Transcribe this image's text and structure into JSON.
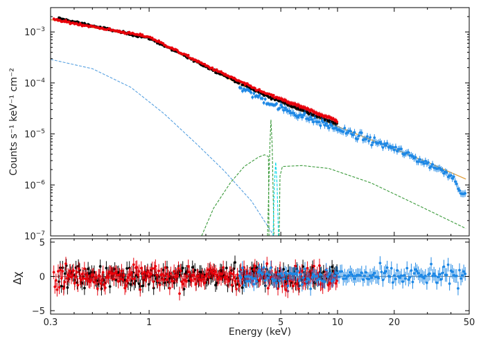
{
  "chart_data": [
    {
      "type": "scatter",
      "panel": "spectrum",
      "xlabel": "",
      "ylabel": "Counts s⁻¹ keV⁻¹ cm⁻²",
      "xscale": "log",
      "yscale": "log",
      "xlim": [
        0.3,
        50
      ],
      "ylim": [
        1e-07,
        0.003
      ],
      "y_ticks": [
        {
          "v": 0.001,
          "m": "10",
          "e": "−3"
        },
        {
          "v": 0.0001,
          "m": "10",
          "e": "−4"
        },
        {
          "v": 1e-05,
          "m": "10",
          "e": "−5"
        },
        {
          "v": 1e-06,
          "m": "10",
          "e": "−6"
        },
        {
          "v": 1e-07,
          "m": "10",
          "e": "−7"
        }
      ],
      "series": [
        {
          "color": "#000000",
          "x_range": [
            0.33,
            10
          ],
          "points": 230,
          "anchors": [
            [
              0.33,
              0.00185
            ],
            [
              1.0,
              0.00075
            ],
            [
              2.0,
              0.00021
            ],
            [
              4.0,
              6e-05
            ],
            [
              10.0,
              1.55e-05
            ]
          ]
        },
        {
          "color": "#e8000b",
          "x_range": [
            0.31,
            10
          ],
          "points": 260,
          "anchors": [
            [
              0.31,
              0.00175
            ],
            [
              1.0,
              0.0008
            ],
            [
              2.0,
              0.00022
            ],
            [
              4.0,
              6.6e-05
            ],
            [
              10.0,
              1.8e-05
            ]
          ]
        },
        {
          "color": "#1e88e5",
          "x_range": [
            3,
            48
          ],
          "points": 160,
          "anchors": [
            [
              3.0,
              8.2e-05
            ],
            [
              5.0,
              3.2e-05
            ],
            [
              10.0,
              1.25e-05
            ],
            [
              20.0,
              5.2e-06
            ],
            [
              40.0,
              1.6e-06
            ],
            [
              48.0,
              5.5e-07
            ]
          ]
        }
      ],
      "models": [
        {
          "color": "#e0a040",
          "style": "solid",
          "points": [
            [
              0.3,
              0.00175
            ],
            [
              1.0,
              0.00075
            ],
            [
              3.0,
              9.5e-05
            ],
            [
              10.0,
              1.4e-05
            ],
            [
              30.0,
              2.8e-06
            ],
            [
              48.0,
              1.3e-06
            ]
          ]
        },
        {
          "color": "#56a0e0",
          "style": "dashed",
          "points": [
            [
              0.3,
              0.00029
            ],
            [
              0.5,
              0.00019
            ],
            [
              0.8,
              8.2e-05
            ],
            [
              1.2,
              2.5e-05
            ],
            [
              1.8,
              6.2e-06
            ],
            [
              2.5,
              1.9e-06
            ],
            [
              3.5,
              4.8e-07
            ],
            [
              4.6,
              1e-07
            ]
          ]
        },
        {
          "color": "#3a9a3a",
          "style": "dashed",
          "points": [
            [
              1.9,
              1e-07
            ],
            [
              2.2,
              3.5e-07
            ],
            [
              2.7,
              1.1e-06
            ],
            [
              3.2,
              2.3e-06
            ],
            [
              3.8,
              3.5e-06
            ],
            [
              4.1,
              3.9e-06
            ],
            [
              4.3,
              3.6e-06
            ],
            [
              4.35,
              1e-08
            ]
          ]
        },
        {
          "color": "#3a9a3a",
          "style": "dashed",
          "points": [
            [
              4.25,
              1e-07
            ],
            [
              4.38,
              6.5e-06
            ],
            [
              4.43,
              1.9e-05
            ],
            [
              4.5,
              6e-06
            ],
            [
              4.6,
              1e-07
            ]
          ]
        },
        {
          "color": "#3a9a3a",
          "style": "dashed",
          "points": [
            [
              4.9,
              1e-07
            ],
            [
              4.95,
              1.5e-06
            ],
            [
              5.1,
              2.3e-06
            ],
            [
              6.5,
              2.4e-06
            ],
            [
              9.0,
              2.1e-06
            ],
            [
              15.0,
              1.1e-06
            ],
            [
              25.0,
              4.5e-07
            ],
            [
              48.0,
              1.4e-07
            ]
          ]
        },
        {
          "color": "#00d8e8",
          "style": "dashed",
          "points": [
            [
              4.55,
              1e-07
            ],
            [
              4.62,
              1e-06
            ],
            [
              4.7,
              2.8e-06
            ],
            [
              4.78,
              1e-06
            ],
            [
              4.86,
              1e-07
            ]
          ]
        }
      ]
    },
    {
      "type": "scatter",
      "panel": "residuals",
      "xlabel": "Energy (keV)",
      "ylabel": "Δχ",
      "xscale": "log",
      "xlim": [
        0.3,
        50
      ],
      "ylim": [
        -5.5,
        5.5
      ],
      "x_ticks": [
        {
          "v": 0.3,
          "label": "0.3"
        },
        {
          "v": 1,
          "label": "1"
        },
        {
          "v": 5,
          "label": "5"
        },
        {
          "v": 10,
          "label": "10"
        },
        {
          "v": 20,
          "label": "20"
        },
        {
          "v": 50,
          "label": "50"
        }
      ],
      "y_ticks": [
        {
          "v": 5,
          "label": "5"
        },
        {
          "v": 0,
          "label": "0"
        },
        {
          "v": -5,
          "label": "−5"
        }
      ],
      "zero_line": true,
      "series": [
        {
          "color": "#000000",
          "x_range": [
            0.33,
            10
          ],
          "points": 230,
          "spread": 1.4
        },
        {
          "color": "#e8000b",
          "x_range": [
            0.31,
            10
          ],
          "points": 260,
          "spread": 1.4
        },
        {
          "color": "#1e88e5",
          "x_range": [
            3,
            48
          ],
          "points": 160,
          "spread": 1.2
        }
      ]
    }
  ]
}
